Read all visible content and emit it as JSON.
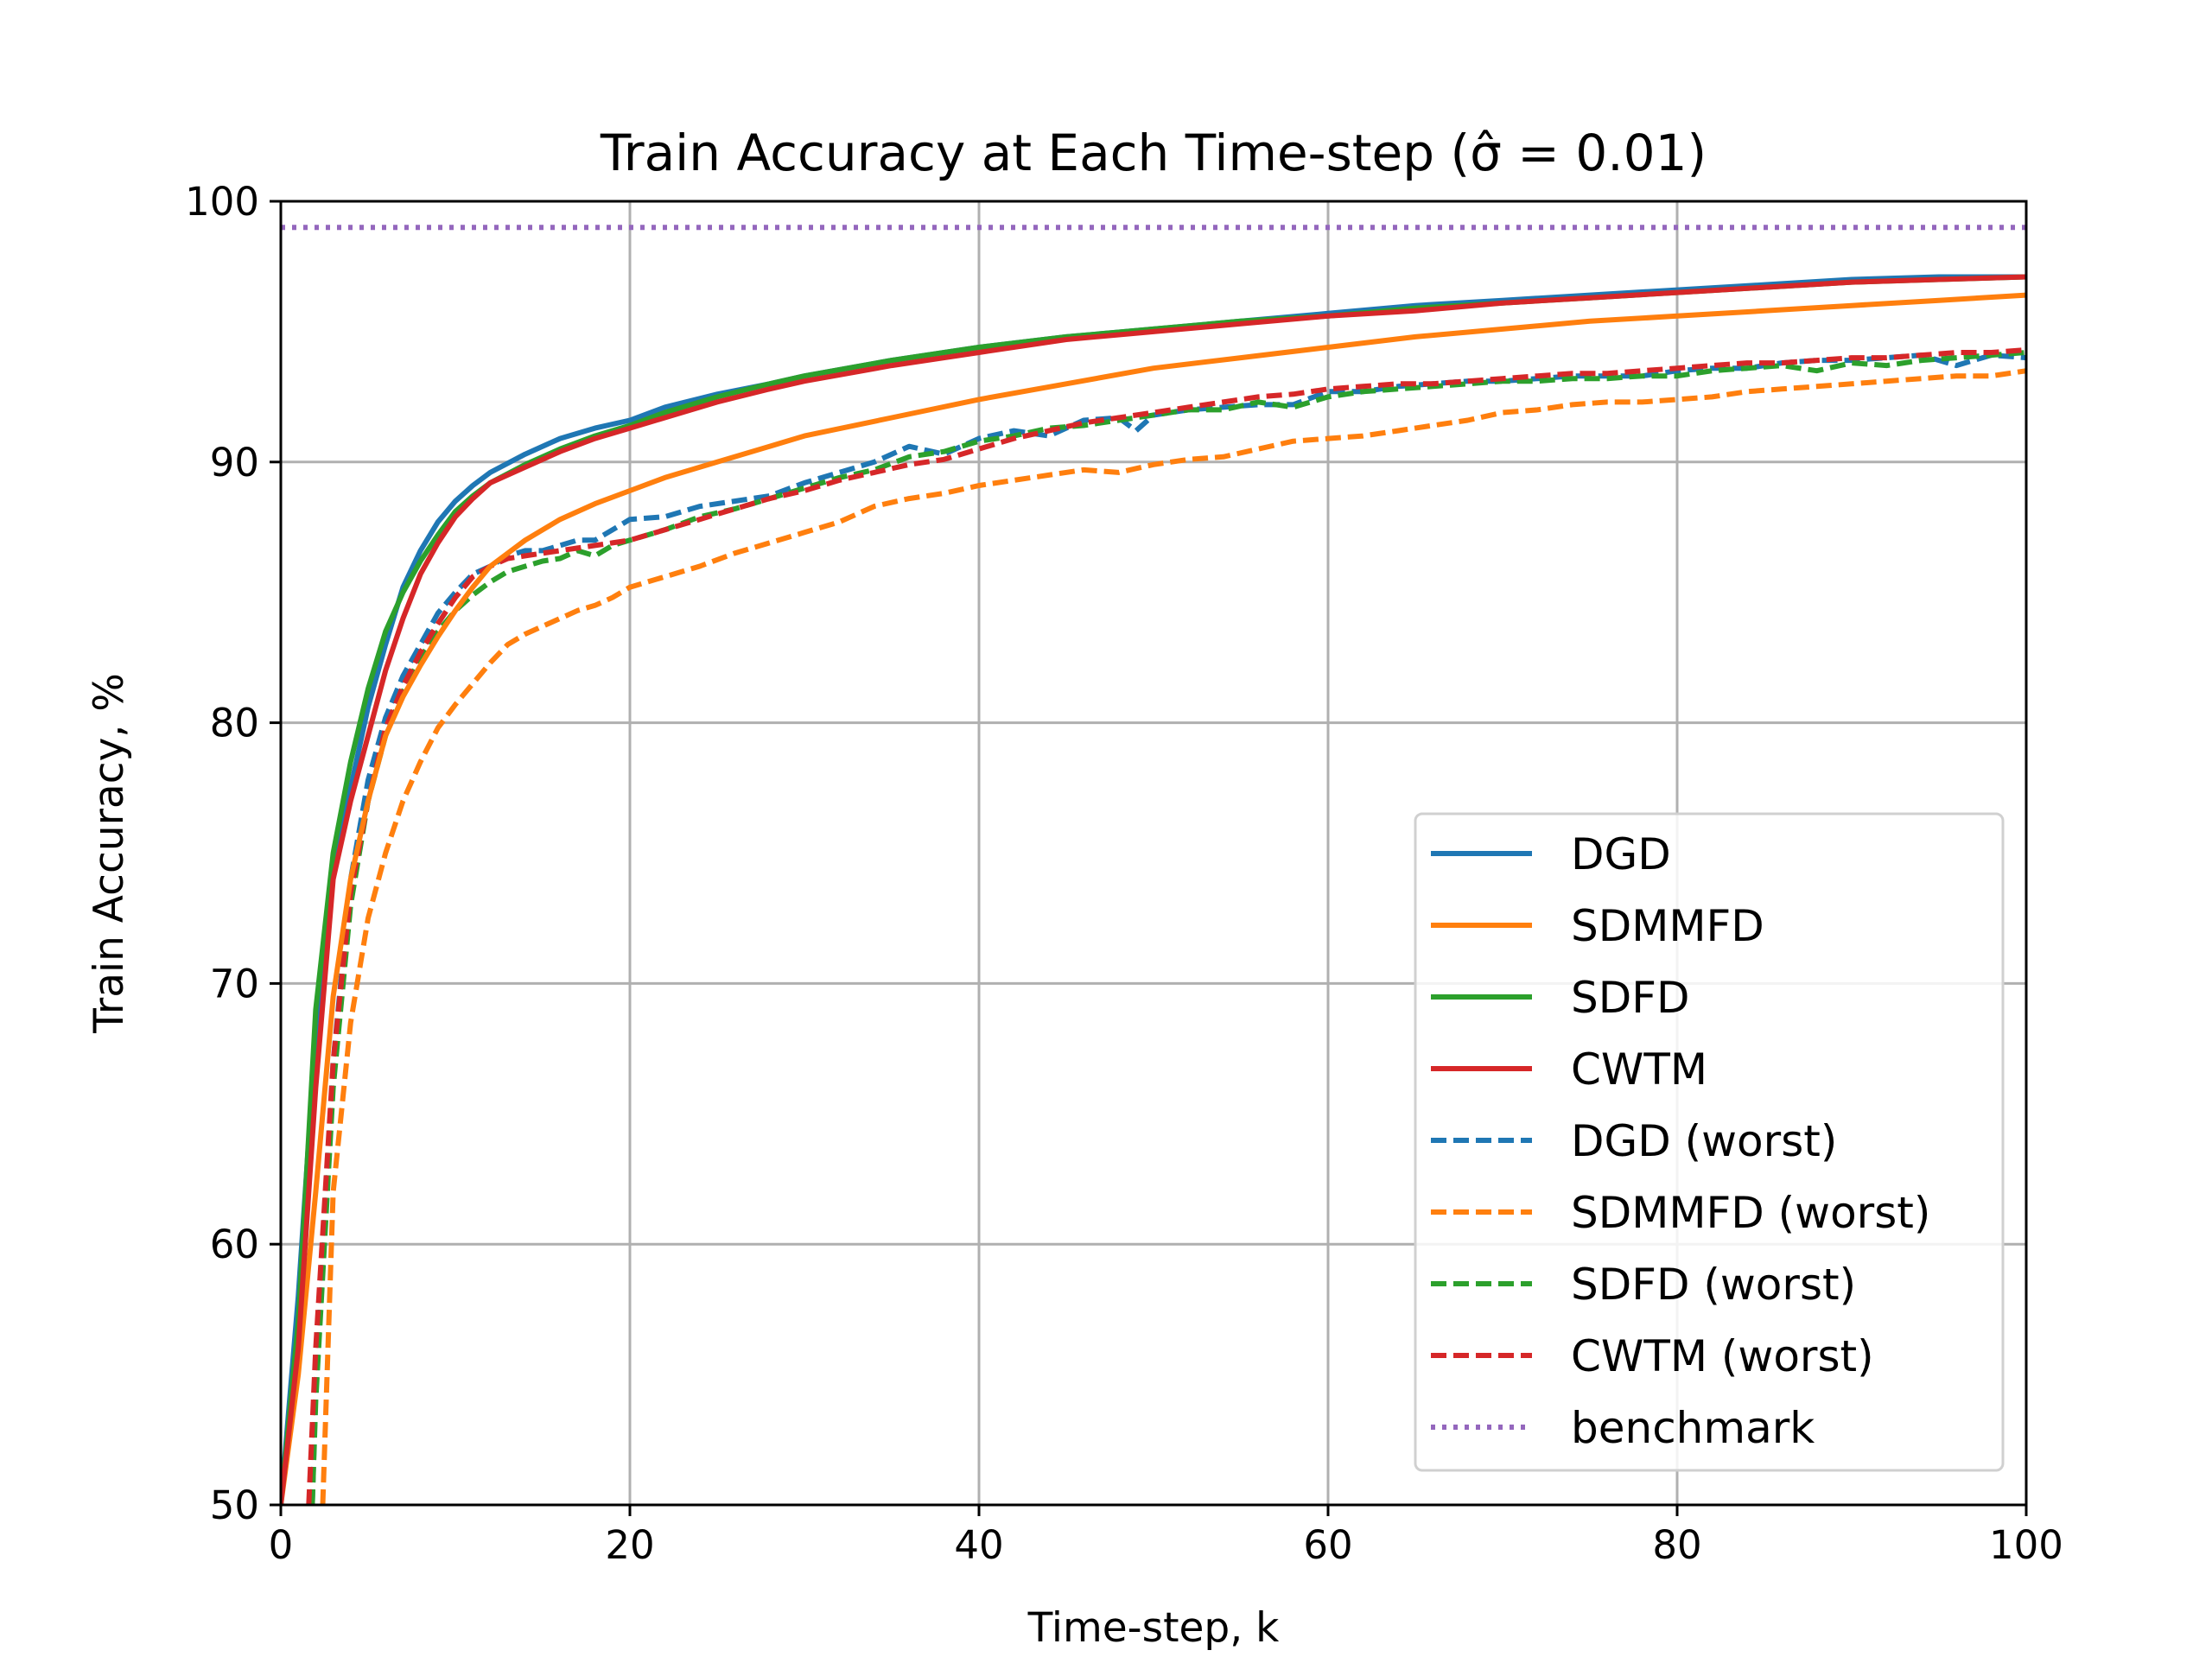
{
  "chart_data": {
    "type": "line",
    "title": "Train Accuracy at Each Time-step (σ̂ = 0.01)",
    "xlabel": "Time-step, k",
    "ylabel": "Train Accuracy, %",
    "xlim": [
      0,
      100
    ],
    "ylim": [
      50,
      100
    ],
    "xticks": [
      "0",
      "20",
      "40",
      "60",
      "80",
      "100"
    ],
    "yticks": [
      "50",
      "60",
      "70",
      "80",
      "90",
      "100"
    ],
    "grid": true,
    "legend_position": "lower right",
    "series": [
      {
        "name": "DGD",
        "color": "#1f77b4",
        "style": "solid",
        "x": [
          0,
          1,
          2,
          3,
          4,
          5,
          6,
          7,
          8,
          9,
          10,
          11,
          12,
          14,
          16,
          18,
          20,
          22,
          25,
          28,
          30,
          35,
          40,
          45,
          50,
          55,
          60,
          65,
          70,
          75,
          80,
          85,
          90,
          95,
          100
        ],
        "y": [
          50.0,
          58.0,
          68.0,
          74.5,
          77.5,
          80.6,
          83.0,
          85.2,
          86.6,
          87.7,
          88.5,
          89.1,
          89.6,
          90.3,
          90.9,
          91.3,
          91.6,
          92.1,
          92.6,
          93.0,
          93.3,
          93.9,
          94.4,
          94.8,
          95.1,
          95.4,
          95.7,
          96.0,
          96.2,
          96.4,
          96.6,
          96.8,
          97.0,
          97.1,
          97.1
        ]
      },
      {
        "name": "SDMMFD",
        "color": "#ff7f0e",
        "style": "solid",
        "x": [
          0,
          1,
          2,
          3,
          4,
          5,
          6,
          7,
          8,
          9,
          10,
          11,
          12,
          14,
          16,
          18,
          20,
          22,
          25,
          28,
          30,
          35,
          40,
          45,
          50,
          55,
          60,
          65,
          70,
          75,
          80,
          85,
          90,
          95,
          100
        ],
        "y": [
          50.0,
          55.0,
          62.0,
          69.5,
          74.0,
          77.0,
          79.5,
          81.0,
          82.2,
          83.3,
          84.3,
          85.2,
          86.0,
          87.0,
          87.8,
          88.4,
          88.9,
          89.4,
          90.0,
          90.6,
          91.0,
          91.7,
          92.4,
          93.0,
          93.6,
          94.0,
          94.4,
          94.8,
          95.1,
          95.4,
          95.6,
          95.8,
          96.0,
          96.2,
          96.4
        ]
      },
      {
        "name": "SDFD",
        "color": "#2ca02c",
        "style": "solid",
        "x": [
          0,
          1,
          2,
          3,
          4,
          5,
          6,
          7,
          8,
          9,
          10,
          11,
          12,
          14,
          16,
          18,
          20,
          22,
          25,
          28,
          30,
          35,
          40,
          45,
          50,
          55,
          60,
          65,
          70,
          75,
          80,
          85,
          90,
          95,
          100
        ],
        "y": [
          50.0,
          57.0,
          69.0,
          75.0,
          78.5,
          81.3,
          83.5,
          85.0,
          86.2,
          87.2,
          88.1,
          88.7,
          89.2,
          89.9,
          90.5,
          91.0,
          91.4,
          91.9,
          92.5,
          93.0,
          93.3,
          93.9,
          94.4,
          94.8,
          95.1,
          95.4,
          95.6,
          95.9,
          96.1,
          96.3,
          96.5,
          96.7,
          96.9,
          97.0,
          97.1
        ]
      },
      {
        "name": "CWTM",
        "color": "#d62728",
        "style": "solid",
        "x": [
          0,
          1,
          2,
          3,
          4,
          5,
          6,
          7,
          8,
          9,
          10,
          11,
          12,
          14,
          16,
          18,
          20,
          22,
          25,
          28,
          30,
          35,
          40,
          45,
          50,
          55,
          60,
          65,
          70,
          75,
          80,
          85,
          90,
          95,
          100
        ],
        "y": [
          50.0,
          56.0,
          66.0,
          74.0,
          77.0,
          79.5,
          82.0,
          84.0,
          85.7,
          86.9,
          87.9,
          88.6,
          89.2,
          89.8,
          90.4,
          90.9,
          91.3,
          91.7,
          92.3,
          92.8,
          93.1,
          93.7,
          94.2,
          94.7,
          95.0,
          95.3,
          95.6,
          95.8,
          96.1,
          96.3,
          96.5,
          96.7,
          96.9,
          97.0,
          97.1
        ]
      },
      {
        "name": "DGD (worst)",
        "color": "#1f77b4",
        "style": "dashed",
        "x": [
          1.8,
          2,
          3,
          4,
          5,
          6,
          7,
          8,
          9,
          10,
          11,
          12,
          13,
          14,
          15,
          16,
          17,
          18,
          19,
          20,
          22,
          24,
          26,
          28,
          30,
          32,
          34,
          36,
          38,
          40,
          42,
          44,
          46,
          48,
          49,
          50,
          52,
          54,
          56,
          58,
          60,
          62,
          64,
          66,
          68,
          70,
          72,
          74,
          76,
          78,
          80,
          82,
          84,
          86,
          88,
          90,
          92,
          94,
          96,
          98,
          100
        ],
        "y": [
          50.0,
          54.5,
          67.0,
          74.0,
          77.8,
          80.2,
          81.8,
          83.0,
          84.2,
          85.0,
          85.7,
          86.0,
          86.4,
          86.6,
          86.6,
          86.8,
          87.0,
          87.0,
          87.4,
          87.8,
          87.9,
          88.3,
          88.5,
          88.7,
          89.2,
          89.6,
          90.0,
          90.6,
          90.3,
          90.9,
          91.2,
          91.0,
          91.6,
          91.7,
          91.2,
          91.8,
          92.0,
          92.1,
          92.2,
          92.2,
          92.7,
          92.7,
          92.9,
          93.0,
          93.1,
          93.1,
          93.2,
          93.3,
          93.3,
          93.3,
          93.5,
          93.6,
          93.6,
          93.8,
          93.9,
          93.9,
          94.0,
          94.1,
          93.7,
          94.1,
          94.0
        ]
      },
      {
        "name": "SDMMFD (worst)",
        "color": "#ff7f0e",
        "style": "dashed",
        "x": [
          2.4,
          3,
          4,
          5,
          6,
          7,
          8,
          9,
          10,
          11,
          12,
          13,
          14,
          15,
          16,
          17,
          18,
          19,
          20,
          22,
          24,
          26,
          28,
          30,
          32,
          34,
          36,
          38,
          40,
          42,
          44,
          46,
          48,
          50,
          52,
          54,
          56,
          58,
          60,
          62,
          64,
          66,
          68,
          70,
          72,
          74,
          76,
          78,
          80,
          82,
          84,
          86,
          88,
          90,
          92,
          94,
          96,
          98,
          100
        ],
        "y": [
          50.0,
          62.0,
          68.5,
          72.5,
          75.0,
          77.0,
          78.5,
          79.8,
          80.7,
          81.5,
          82.3,
          83.0,
          83.4,
          83.7,
          84.0,
          84.3,
          84.5,
          84.8,
          85.2,
          85.6,
          86.0,
          86.5,
          86.9,
          87.3,
          87.7,
          88.3,
          88.6,
          88.8,
          89.1,
          89.3,
          89.5,
          89.7,
          89.6,
          89.9,
          90.1,
          90.2,
          90.5,
          90.8,
          90.9,
          91.0,
          91.2,
          91.4,
          91.6,
          91.9,
          92.0,
          92.2,
          92.3,
          92.3,
          92.4,
          92.5,
          92.7,
          92.8,
          92.9,
          93.0,
          93.1,
          93.2,
          93.3,
          93.3,
          93.5
        ]
      },
      {
        "name": "SDFD (worst)",
        "color": "#2ca02c",
        "style": "dashed",
        "x": [
          1.8,
          2,
          3,
          4,
          5,
          6,
          7,
          8,
          9,
          10,
          11,
          12,
          13,
          14,
          15,
          16,
          17,
          18,
          19,
          20,
          22,
          24,
          26,
          28,
          30,
          32,
          34,
          36,
          38,
          40,
          42,
          44,
          46,
          48,
          50,
          52,
          54,
          56,
          58,
          60,
          62,
          64,
          66,
          68,
          70,
          72,
          74,
          76,
          78,
          80,
          82,
          84,
          86,
          88,
          90,
          92,
          94,
          96,
          98,
          100
        ],
        "y": [
          50.0,
          54.0,
          66.0,
          73.0,
          77.0,
          79.5,
          81.2,
          82.5,
          83.5,
          84.3,
          84.9,
          85.4,
          85.8,
          86.0,
          86.2,
          86.3,
          86.6,
          86.4,
          86.8,
          87.0,
          87.4,
          87.9,
          88.2,
          88.6,
          89.0,
          89.4,
          89.7,
          90.2,
          90.4,
          90.8,
          91.0,
          91.3,
          91.4,
          91.6,
          91.8,
          92.0,
          92.0,
          92.3,
          92.1,
          92.5,
          92.7,
          92.8,
          92.9,
          93.0,
          93.1,
          93.1,
          93.2,
          93.2,
          93.3,
          93.3,
          93.5,
          93.6,
          93.7,
          93.5,
          93.8,
          93.7,
          93.9,
          94.0,
          94.1,
          94.2
        ]
      },
      {
        "name": "CWTM (worst)",
        "color": "#d62728",
        "style": "dashed",
        "x": [
          1.6,
          2,
          3,
          4,
          5,
          6,
          7,
          8,
          9,
          10,
          11,
          12,
          13,
          14,
          15,
          16,
          17,
          18,
          19,
          20,
          22,
          24,
          26,
          28,
          30,
          32,
          34,
          36,
          38,
          40,
          42,
          44,
          46,
          48,
          50,
          52,
          54,
          56,
          58,
          60,
          62,
          64,
          66,
          68,
          70,
          72,
          74,
          76,
          78,
          80,
          82,
          84,
          86,
          88,
          90,
          92,
          94,
          96,
          98,
          100
        ],
        "y": [
          50.0,
          56.0,
          67.0,
          73.5,
          77.0,
          79.8,
          81.4,
          82.7,
          83.8,
          84.8,
          85.6,
          86.0,
          86.3,
          86.4,
          86.5,
          86.6,
          86.7,
          86.8,
          86.9,
          87.0,
          87.4,
          87.8,
          88.2,
          88.6,
          88.9,
          89.3,
          89.6,
          89.9,
          90.1,
          90.5,
          90.9,
          91.2,
          91.5,
          91.7,
          91.9,
          92.1,
          92.3,
          92.5,
          92.6,
          92.8,
          92.9,
          93.0,
          93.0,
          93.1,
          93.2,
          93.3,
          93.4,
          93.4,
          93.5,
          93.6,
          93.7,
          93.8,
          93.8,
          93.9,
          94.0,
          94.0,
          94.1,
          94.2,
          94.2,
          94.3
        ]
      },
      {
        "name": "benchmark",
        "color": "#9467bd",
        "style": "dotted",
        "x": [
          0,
          100
        ],
        "y": [
          99.0,
          99.0
        ]
      }
    ]
  }
}
